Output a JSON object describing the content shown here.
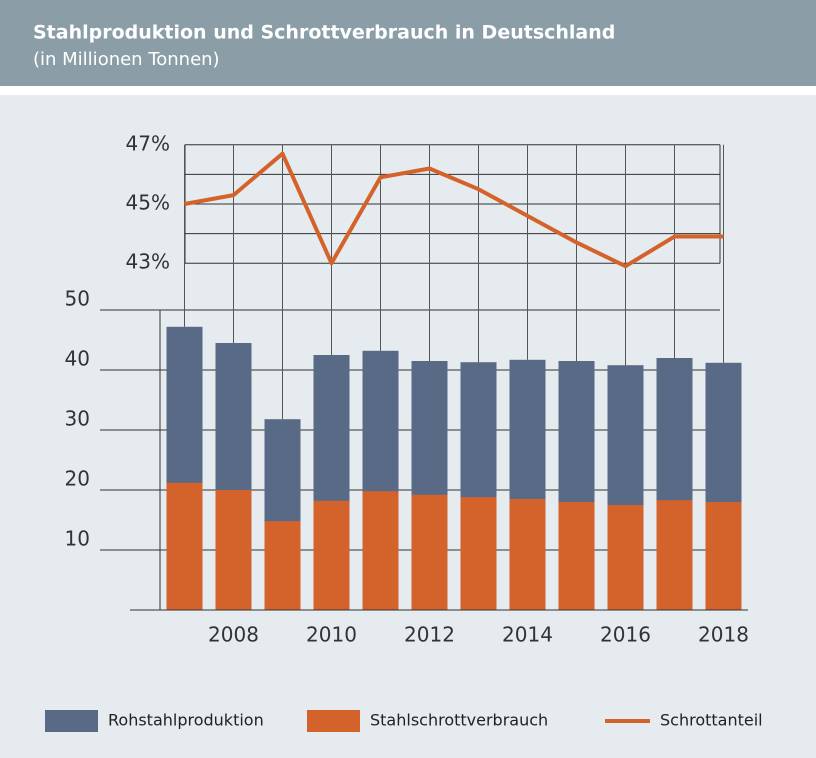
{
  "chart_data": {
    "type": "bar",
    "title": "Stahlproduktion und Schrottverbrauch in Deutschland",
    "subtitle": "(in Millionen Tonnen)",
    "categories": [
      null,
      "2008",
      null,
      "2010",
      null,
      "2012",
      null,
      "2014",
      null,
      "2016",
      null,
      "2018"
    ],
    "series": [
      {
        "name": "Rohstahlproduktion",
        "color": "#596a87",
        "values": [
          47.2,
          44.5,
          31.8,
          42.5,
          43.2,
          41.5,
          41.3,
          41.7,
          41.5,
          40.8,
          42.0,
          41.2
        ]
      },
      {
        "name": "Stahlschrottverbrauch",
        "color": "#d4622b",
        "values": [
          21.2,
          20.0,
          14.8,
          18.2,
          19.8,
          19.2,
          18.8,
          18.5,
          18.0,
          17.5,
          18.3,
          18.0
        ]
      },
      {
        "name": "Schrottanteil",
        "type": "line",
        "axis": "y2",
        "color": "#d4622b",
        "values": [
          45.0,
          45.3,
          46.7,
          43.0,
          45.9,
          46.2,
          45.5,
          44.6,
          43.7,
          42.9,
          43.9,
          43.9
        ]
      }
    ],
    "ylim": [
      0,
      50
    ],
    "yticks": [
      10,
      20,
      30,
      40,
      50
    ],
    "y2lim": [
      42.5,
      47.5
    ],
    "y2ticks": [
      {
        "value": 43,
        "label": "43%"
      },
      {
        "value": 45,
        "label": "45%"
      },
      {
        "value": 47,
        "label": "47%"
      }
    ],
    "y2minor": [
      44,
      46
    ],
    "grid": true,
    "legend": "bottom"
  }
}
